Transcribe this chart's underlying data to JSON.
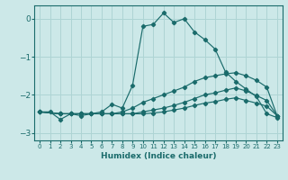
{
  "title": "",
  "xlabel": "Humidex (Indice chaleur)",
  "ylabel": "",
  "bg_color": "#cce8e8",
  "line_color": "#1a6b6b",
  "grid_color": "#aed4d4",
  "xlim": [
    -0.5,
    23.5
  ],
  "ylim": [
    -3.2,
    0.35
  ],
  "yticks": [
    0,
    -1,
    -2,
    -3
  ],
  "xticks": [
    0,
    1,
    2,
    3,
    4,
    5,
    6,
    7,
    8,
    9,
    10,
    11,
    12,
    13,
    14,
    15,
    16,
    17,
    18,
    19,
    20,
    21,
    22,
    23
  ],
  "line1_x": [
    0,
    1,
    2,
    3,
    4,
    5,
    6,
    7,
    8,
    9,
    10,
    11,
    12,
    13,
    14,
    15,
    16,
    17,
    18,
    19,
    20,
    21,
    22,
    23
  ],
  "line1_y": [
    -2.45,
    -2.45,
    -2.65,
    -2.5,
    -2.55,
    -2.5,
    -2.45,
    -2.25,
    -2.35,
    -1.75,
    -0.2,
    -0.15,
    0.15,
    -0.1,
    0.0,
    -0.35,
    -0.55,
    -0.8,
    -1.4,
    -1.65,
    -1.85,
    -2.05,
    -2.5,
    -2.6
  ],
  "line2_x": [
    0,
    2,
    3,
    4,
    5,
    6,
    7,
    8,
    9,
    10,
    11,
    12,
    13,
    14,
    15,
    16,
    17,
    18,
    19,
    20,
    21,
    22,
    23
  ],
  "line2_y": [
    -2.45,
    -2.5,
    -2.5,
    -2.5,
    -2.5,
    -2.5,
    -2.5,
    -2.45,
    -2.35,
    -2.2,
    -2.1,
    -2.0,
    -1.9,
    -1.8,
    -1.65,
    -1.55,
    -1.5,
    -1.45,
    -1.42,
    -1.5,
    -1.62,
    -1.8,
    -2.55
  ],
  "line3_x": [
    0,
    2,
    3,
    4,
    5,
    6,
    7,
    8,
    9,
    10,
    11,
    12,
    13,
    14,
    15,
    16,
    17,
    18,
    19,
    20,
    21,
    22,
    23
  ],
  "line3_y": [
    -2.45,
    -2.5,
    -2.5,
    -2.5,
    -2.5,
    -2.5,
    -2.5,
    -2.5,
    -2.5,
    -2.45,
    -2.4,
    -2.35,
    -2.28,
    -2.2,
    -2.1,
    -2.0,
    -1.95,
    -1.88,
    -1.82,
    -1.9,
    -2.02,
    -2.15,
    -2.55
  ],
  "line4_x": [
    0,
    2,
    3,
    4,
    5,
    6,
    7,
    8,
    9,
    10,
    11,
    12,
    13,
    14,
    15,
    16,
    17,
    18,
    19,
    20,
    21,
    22,
    23
  ],
  "line4_y": [
    -2.45,
    -2.5,
    -2.5,
    -2.5,
    -2.5,
    -2.5,
    -2.5,
    -2.5,
    -2.5,
    -2.5,
    -2.48,
    -2.45,
    -2.4,
    -2.35,
    -2.28,
    -2.22,
    -2.18,
    -2.12,
    -2.08,
    -2.15,
    -2.22,
    -2.3,
    -2.55
  ]
}
